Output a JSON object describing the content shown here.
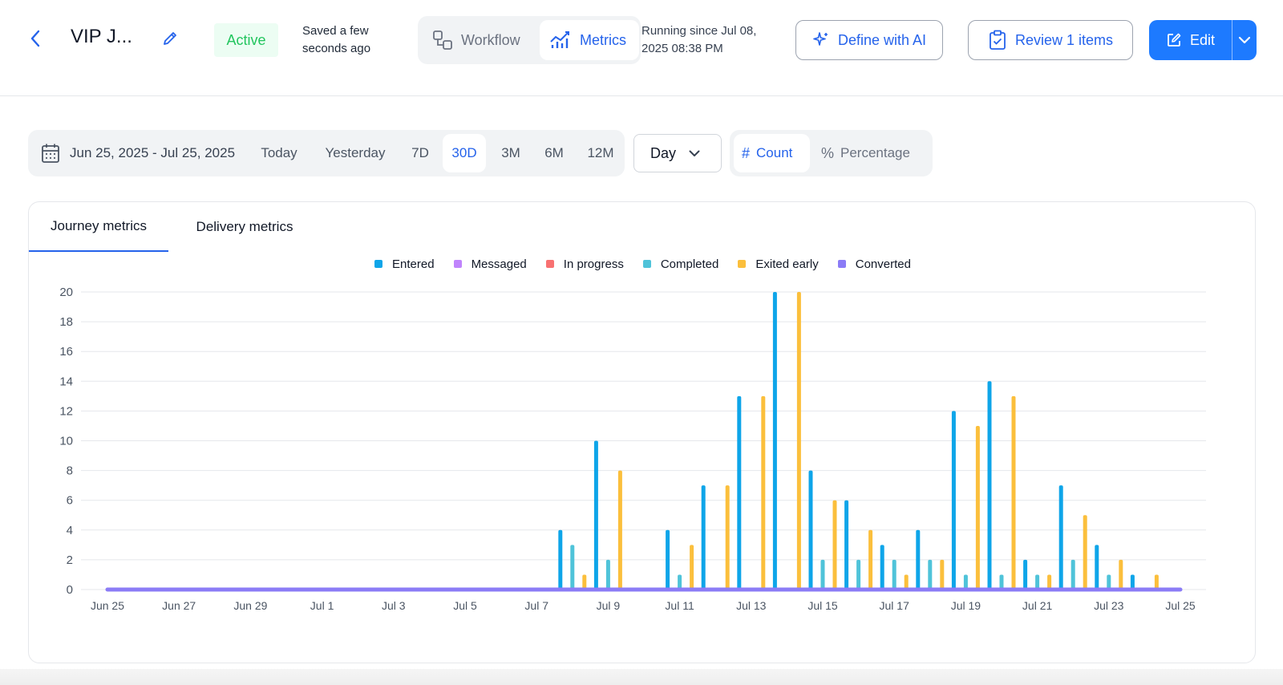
{
  "header": {
    "title": "VIP J...",
    "status": "Active",
    "saved_text": "Saved a few seconds ago",
    "tabs": [
      {
        "label": "Workflow"
      },
      {
        "label": "Metrics"
      }
    ],
    "running_text": "Running since Jul 08, 2025 08:38 PM",
    "define_ai_label": "Define with AI",
    "review_label": "Review 1 items",
    "edit_label": "Edit"
  },
  "filters": {
    "date_range": "Jun 25, 2025 - Jul 25, 2025",
    "periods": [
      "Today",
      "Yesterday",
      "7D",
      "30D",
      "3M",
      "6M",
      "12M"
    ],
    "active_period": "30D",
    "granularity": "Day",
    "modes": [
      "Count",
      "Percentage"
    ],
    "active_mode": "Count"
  },
  "card": {
    "tabs": [
      "Journey metrics",
      "Delivery metrics"
    ],
    "active_tab": "Journey metrics"
  },
  "chart_data": {
    "type": "bar",
    "categories": [
      "Jun 25",
      "Jun 26",
      "Jun 27",
      "Jun 28",
      "Jun 29",
      "Jun 30",
      "Jul 1",
      "Jul 2",
      "Jul 3",
      "Jul 4",
      "Jul 5",
      "Jul 6",
      "Jul 7",
      "Jul 8",
      "Jul 9",
      "Jul 10",
      "Jul 11",
      "Jul 12",
      "Jul 13",
      "Jul 14",
      "Jul 15",
      "Jul 16",
      "Jul 17",
      "Jul 18",
      "Jul 19",
      "Jul 20",
      "Jul 21",
      "Jul 22",
      "Jul 23",
      "Jul 24",
      "Jul 25"
    ],
    "x_tick_labels": [
      "Jun 25",
      "Jun 27",
      "Jun 29",
      "Jul 1",
      "Jul 3",
      "Jul 5",
      "Jul 7",
      "Jul 9",
      "Jul 11",
      "Jul 13",
      "Jul 15",
      "Jul 17",
      "Jul 19",
      "Jul 21",
      "Jul 23",
      "Jul 25"
    ],
    "ylim": [
      0,
      20
    ],
    "y_ticks": [
      0,
      2,
      4,
      6,
      8,
      10,
      12,
      14,
      16,
      18,
      20
    ],
    "grid": true,
    "legend_position": "top-center",
    "series": [
      {
        "name": "Entered",
        "color": "#0ea5e9",
        "values": [
          0,
          0,
          0,
          0,
          0,
          0,
          0,
          0,
          0,
          0,
          0,
          0,
          0,
          4,
          10,
          0,
          4,
          7,
          13,
          20,
          8,
          6,
          3,
          4,
          12,
          14,
          2,
          7,
          3,
          1,
          0
        ]
      },
      {
        "name": "Messaged",
        "color": "#c084fc",
        "values": [
          0,
          0,
          0,
          0,
          0,
          0,
          0,
          0,
          0,
          0,
          0,
          0,
          0,
          0,
          0,
          0,
          0,
          0,
          0,
          0,
          0,
          0,
          0,
          0,
          0,
          0,
          0,
          0,
          0,
          0,
          0
        ]
      },
      {
        "name": "In progress",
        "color": "#f87171",
        "values": [
          0,
          0,
          0,
          0,
          0,
          0,
          0,
          0,
          0,
          0,
          0,
          0,
          0,
          0,
          0,
          0,
          0,
          0,
          0,
          0,
          0,
          0,
          0,
          0,
          0,
          0,
          0,
          0,
          0,
          0,
          0
        ]
      },
      {
        "name": "Completed",
        "color": "#4fc3d9",
        "values": [
          0,
          0,
          0,
          0,
          0,
          0,
          0,
          0,
          0,
          0,
          0,
          0,
          0,
          3,
          2,
          0,
          1,
          0,
          0,
          0,
          2,
          2,
          2,
          2,
          1,
          1,
          1,
          2,
          1,
          0,
          0
        ]
      },
      {
        "name": "Exited early",
        "color": "#fbbf3c",
        "values": [
          0,
          0,
          0,
          0,
          0,
          0,
          0,
          0,
          0,
          0,
          0,
          0,
          0,
          1,
          8,
          0,
          3,
          7,
          13,
          20,
          6,
          4,
          1,
          2,
          11,
          13,
          1,
          5,
          2,
          1,
          0
        ]
      },
      {
        "name": "Converted",
        "color": "#8b7cf6",
        "values": [
          0,
          0,
          0,
          0,
          0,
          0,
          0,
          0,
          0,
          0,
          0,
          0,
          0,
          0,
          0,
          0,
          0,
          0,
          0,
          0,
          0,
          0,
          0,
          0,
          0,
          0,
          0,
          0,
          0,
          0,
          0
        ]
      }
    ]
  }
}
